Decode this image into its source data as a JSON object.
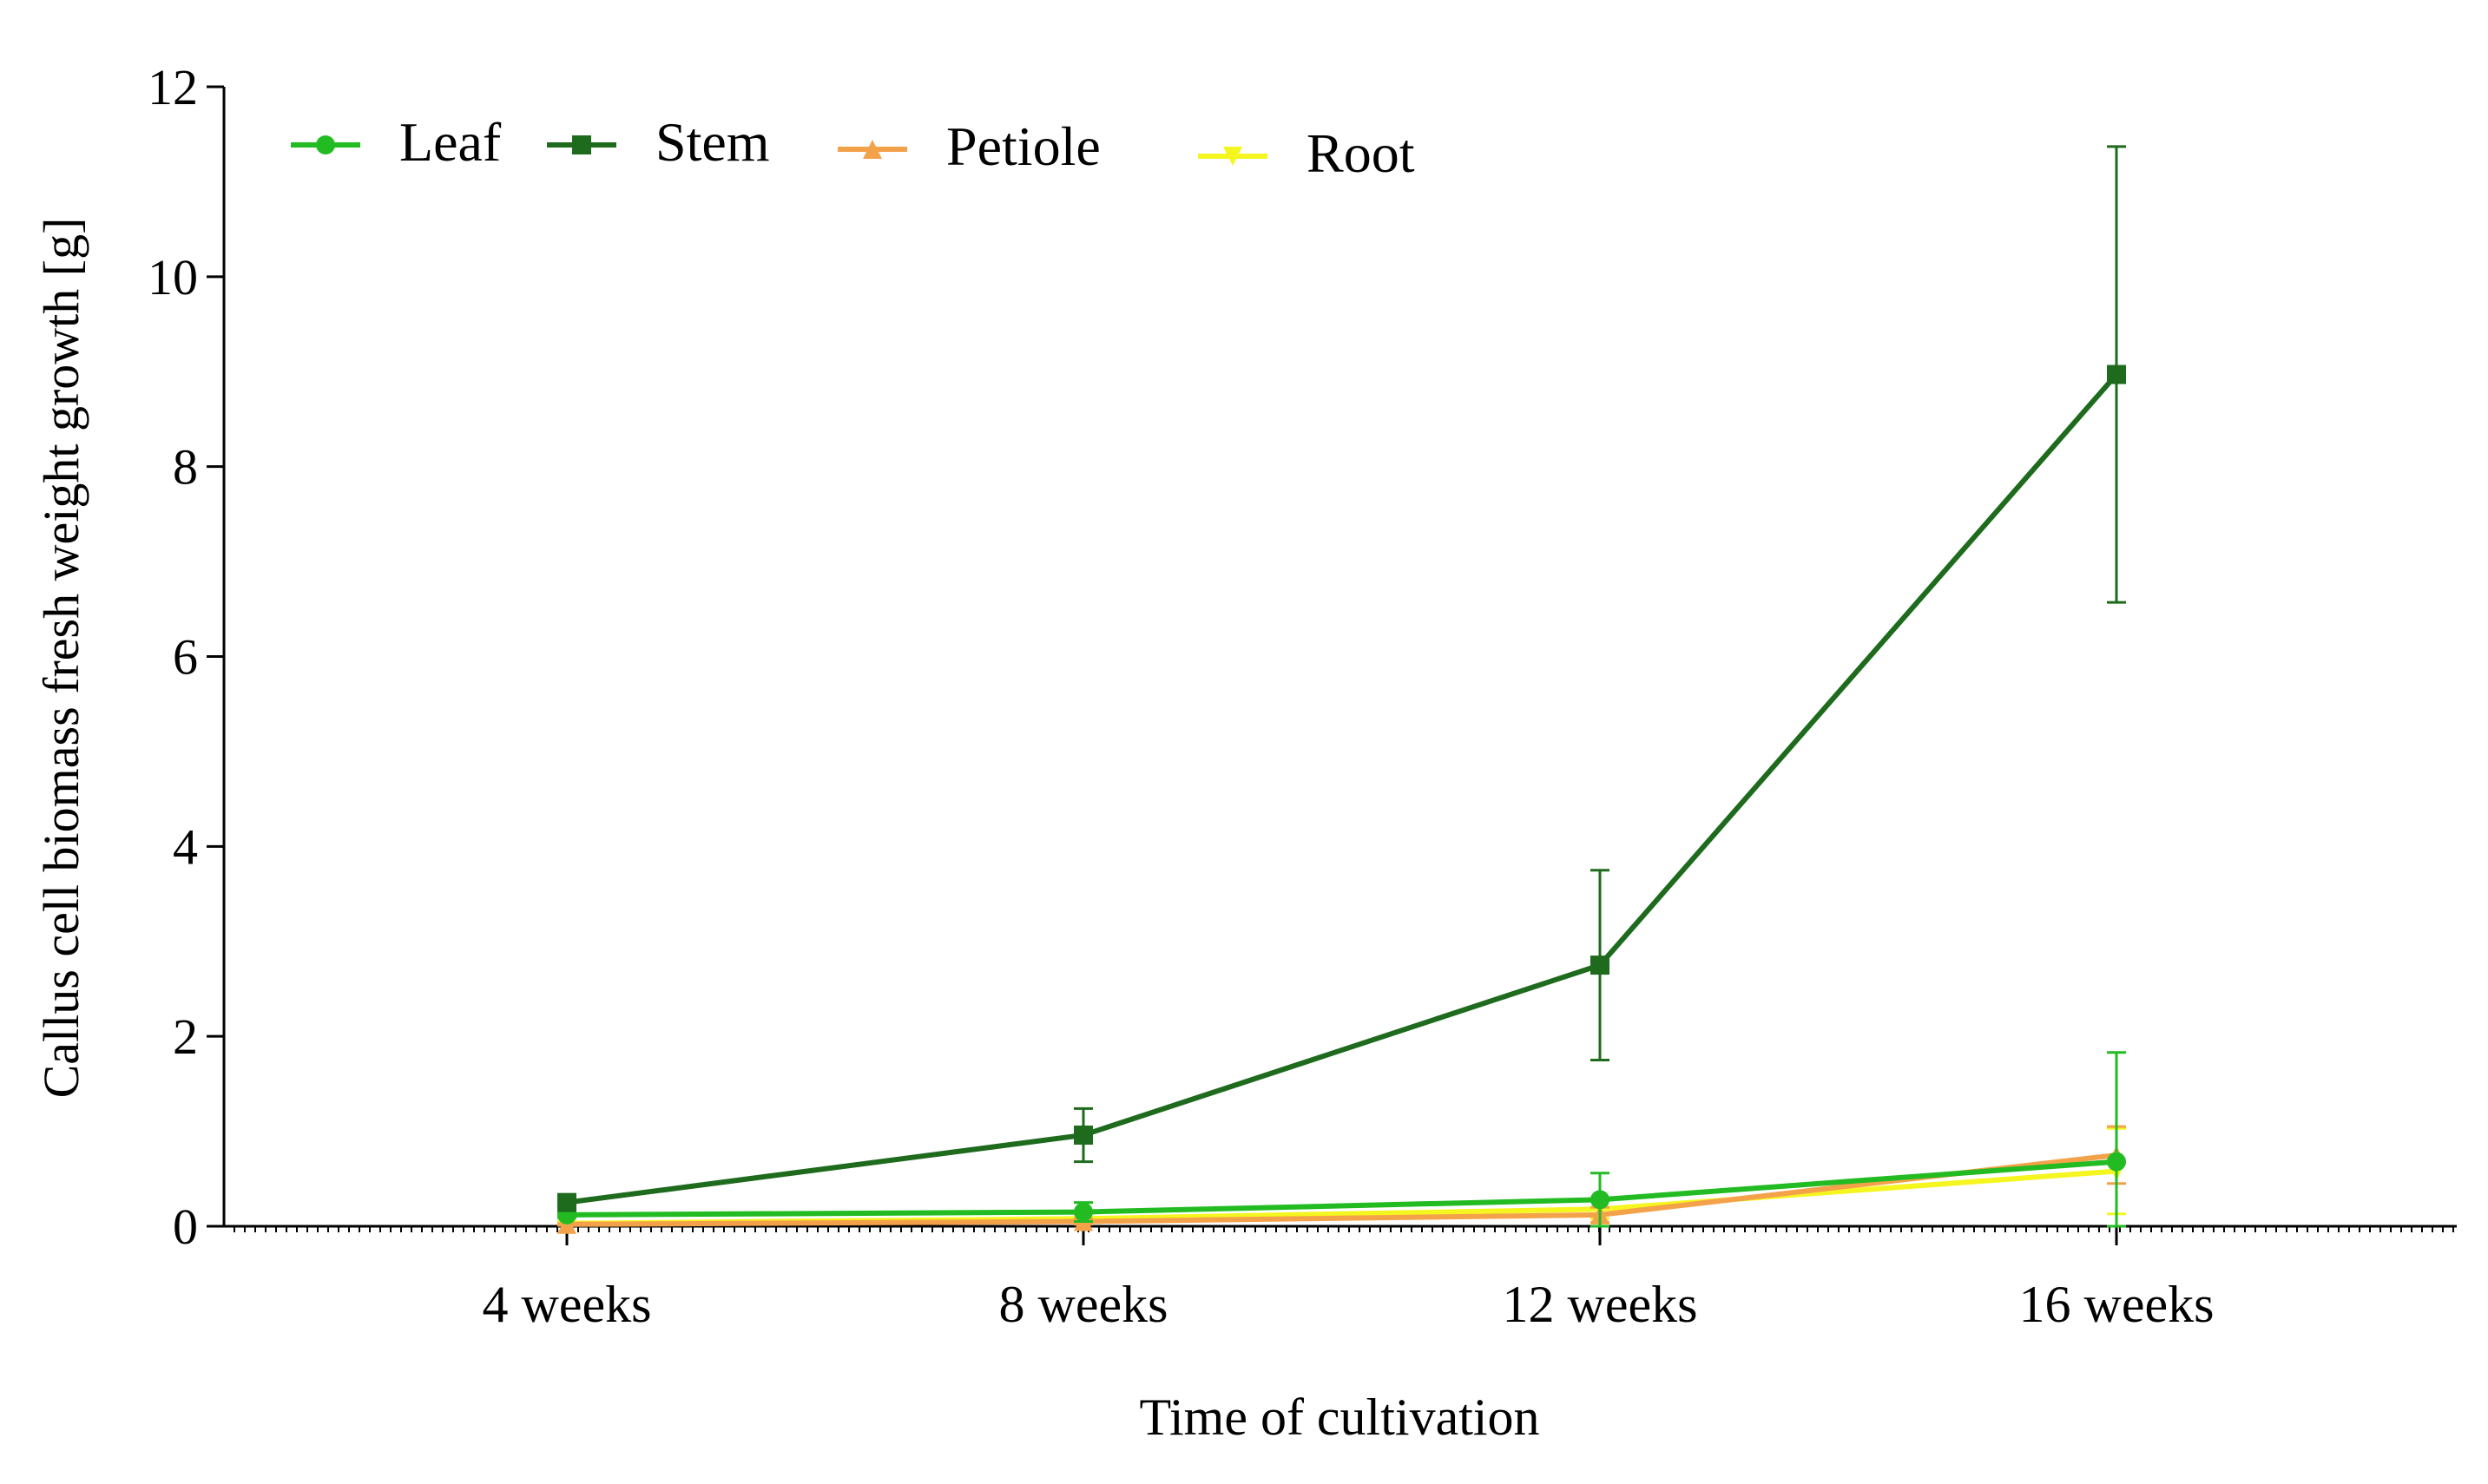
{
  "chart_data": {
    "type": "line",
    "title": "",
    "xlabel": "Time of cultivation",
    "ylabel": "Callus cell biomass fresh weight growth [g]",
    "categories": [
      "4 weeks",
      "8 weeks",
      "12 weeks",
      "16 weeks"
    ],
    "ylim": [
      0,
      12
    ],
    "yticks": [
      0,
      2,
      4,
      6,
      8,
      10,
      12
    ],
    "legend_position": "top-left",
    "series": [
      {
        "name": "Leaf",
        "color": "#22bb22",
        "marker": "circle",
        "values": [
          0.12,
          0.15,
          0.28,
          0.68
        ],
        "errors": [
          0.03,
          0.1,
          0.28,
          1.15
        ]
      },
      {
        "name": "Stem",
        "color": "#1e6b1e",
        "marker": "square",
        "values": [
          0.25,
          0.96,
          2.75,
          8.97
        ],
        "errors": [
          0.05,
          0.28,
          1.0,
          2.4
        ]
      },
      {
        "name": "Petiole",
        "color": "#f4a24a",
        "marker": "triangle-up",
        "values": [
          0.02,
          0.05,
          0.12,
          0.75
        ],
        "errors": [
          0.01,
          0.03,
          0.08,
          0.3
        ]
      },
      {
        "name": "Root",
        "color": "#f5f51f",
        "marker": "triangle-down",
        "values": [
          0.03,
          0.08,
          0.18,
          0.58
        ],
        "errors": [
          0.02,
          0.05,
          0.1,
          0.45
        ]
      }
    ]
  }
}
